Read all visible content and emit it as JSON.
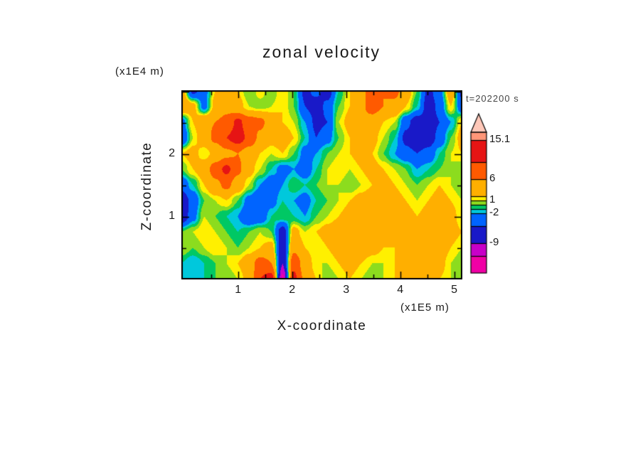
{
  "page": {
    "background": "#ffffff"
  },
  "chart_data": {
    "type": "heatmap",
    "title": "zonal velocity",
    "timestamp_label": "t=202200 s",
    "xlabel": "X-coordinate",
    "x_unit_label": "(x1E5 m)",
    "ylabel": "Z-coordinate",
    "y_unit_label": "(x1E4 m)",
    "x_range": [
      0,
      5.2
    ],
    "z_range": [
      0,
      3.0
    ],
    "x_ticks": [
      1,
      2,
      3,
      4,
      5
    ],
    "z_ticks": [
      1,
      2
    ],
    "x_tick_labels": [
      "1",
      "2",
      "3",
      "4",
      "5"
    ],
    "z_tick_labels": [
      "1",
      "2"
    ],
    "grid": false,
    "colorbar": {
      "labels": [
        "15.1",
        "6",
        "1",
        "-2",
        "-9"
      ],
      "label_values": [
        15.1,
        6,
        1,
        -2,
        -9
      ],
      "levels": [
        -12,
        -9,
        -5,
        -2,
        -1,
        0,
        1,
        2,
        6,
        10,
        15.1
      ],
      "colors": [
        "#F000A5",
        "#C800C8",
        "#1919C8",
        "#0064FF",
        "#00C8DC",
        "#00C864",
        "#8CDC1E",
        "#FFF000",
        "#FFAF00",
        "#FF5A00",
        "#E61414",
        "#FF9678"
      ],
      "arrow_color": "#FFC8B9",
      "bar_range": [
        -16,
        17
      ]
    },
    "field": {
      "nx": 26,
      "nz": 13,
      "order": "rows-top-to-bottom",
      "values": [
        [
          4,
          -6,
          -3,
          2,
          4,
          2,
          0,
          1.5,
          0,
          2,
          0,
          -6,
          -4,
          -7,
          -1,
          2,
          5,
          8,
          6,
          7,
          4,
          0,
          -6,
          -3,
          4,
          -6
        ],
        [
          5,
          3,
          -3,
          3,
          5,
          3,
          1,
          0.5,
          1,
          2,
          0,
          -5,
          -7,
          -4,
          0,
          2,
          5,
          8,
          6,
          5,
          2,
          -1,
          -7,
          -4,
          2,
          -4
        ],
        [
          -3,
          2,
          5,
          6,
          7,
          11,
          8,
          7,
          4,
          2,
          1,
          -2,
          -6,
          -5,
          1,
          3,
          5,
          4,
          2,
          1,
          -4,
          -7,
          -7,
          -5,
          -2,
          2
        ],
        [
          -5,
          1,
          4,
          7,
          10,
          12,
          9,
          5,
          3,
          4,
          2,
          -1,
          -5,
          -3,
          0,
          2,
          4,
          3,
          1,
          -1,
          -6,
          -8,
          -7,
          -4,
          0,
          3
        ],
        [
          2,
          3,
          1,
          3,
          5,
          6,
          4,
          2,
          1,
          2,
          0,
          -3,
          -2,
          0,
          1,
          2,
          3,
          2,
          0,
          -2,
          -4,
          -5,
          -4,
          -1,
          1,
          2
        ],
        [
          0,
          2,
          4,
          8,
          11,
          7,
          3,
          1,
          -1,
          -3,
          -2,
          -4,
          -1,
          1,
          2,
          1,
          2,
          3,
          2,
          1,
          0,
          -2,
          -1,
          0,
          1,
          0
        ],
        [
          -4,
          -1,
          2,
          5,
          7,
          4,
          1,
          -2,
          -4,
          -2,
          0,
          -1,
          0,
          1,
          1,
          0,
          1,
          2,
          3,
          2,
          1,
          0,
          1,
          2,
          1,
          0
        ],
        [
          -7,
          -4,
          0,
          1,
          2,
          0,
          -3,
          -5,
          -3,
          -1,
          -2,
          -3,
          -1,
          0,
          1,
          2,
          3,
          4,
          4,
          3,
          2,
          1,
          2,
          3,
          2,
          1
        ],
        [
          -8,
          -3,
          1,
          0,
          -1,
          -2,
          -5,
          -4,
          -1,
          0,
          -1,
          -2,
          0,
          1,
          2,
          3,
          4,
          5,
          4,
          4,
          3,
          2,
          3,
          4,
          3,
          1
        ],
        [
          0,
          1,
          2,
          1,
          0,
          -1,
          0,
          1,
          0,
          -7,
          3,
          1,
          2,
          3,
          4,
          4,
          5,
          5,
          4,
          3,
          2,
          3,
          4,
          4,
          3,
          2
        ],
        [
          1,
          0,
          1,
          2,
          1,
          0,
          1,
          2,
          3,
          -8,
          5,
          2,
          1,
          2,
          3,
          5,
          4,
          3,
          2,
          2,
          3,
          4,
          5,
          4,
          2,
          1
        ],
        [
          -1,
          -2,
          -1,
          0,
          1,
          2,
          4,
          8,
          6,
          -9,
          9,
          4,
          1,
          1,
          2,
          3,
          2,
          1,
          1,
          2,
          4,
          5,
          4,
          3,
          1,
          0
        ],
        [
          -2,
          -1,
          -1,
          0,
          0,
          1,
          3,
          10,
          12,
          -13,
          11,
          5,
          2,
          0,
          1,
          2,
          1,
          0,
          1,
          2,
          3,
          4,
          3,
          2,
          1,
          0
        ]
      ]
    }
  }
}
